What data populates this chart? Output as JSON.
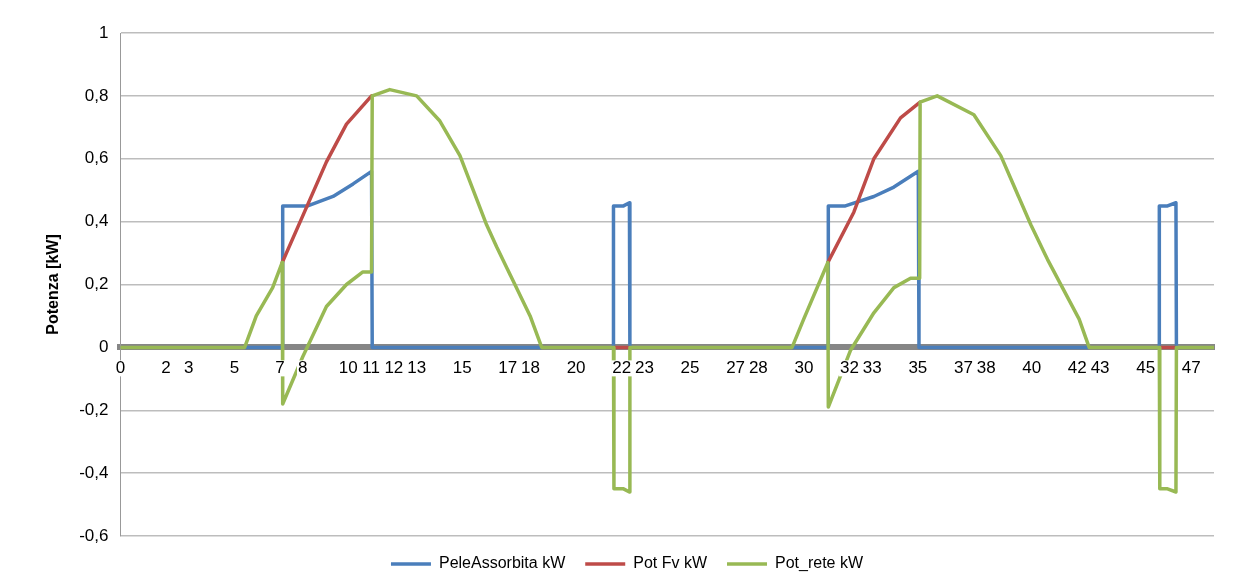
{
  "chart_data": {
    "type": "line",
    "ylabel": "Potenza [kW]",
    "xlim": [
      0,
      48
    ],
    "xticks": [
      0,
      2,
      3,
      5,
      7,
      8,
      10,
      11,
      12,
      13,
      15,
      17,
      18,
      20,
      22,
      23,
      25,
      27,
      28,
      30,
      32,
      33,
      35,
      37,
      38,
      40,
      42,
      43,
      45,
      47
    ],
    "ylim": [
      -0.6,
      1
    ],
    "yticks": [
      {
        "value": -0.6,
        "label": "-0,6"
      },
      {
        "value": -0.4,
        "label": "-0,4"
      },
      {
        "value": -0.2,
        "label": "-0,2"
      },
      {
        "value": 0,
        "label": "0"
      },
      {
        "value": 0.2,
        "label": "0,2"
      },
      {
        "value": 0.4,
        "label": "0,4"
      },
      {
        "value": 0.6,
        "label": "0,6"
      },
      {
        "value": 0.8,
        "label": "0,8"
      },
      {
        "value": 1,
        "label": "1"
      }
    ],
    "grid": "y",
    "legend": "bottom",
    "marker": "none",
    "line_style": "solid",
    "series": [
      {
        "name": "PeleAssorbita kW",
        "color": "#4a7ebb",
        "x": [
          5.45,
          7.12,
          7.12,
          7.9,
          8.22,
          9.33,
          10.21,
          11.02,
          11.05,
          18.49,
          20,
          21.64,
          21.64,
          22.08,
          22.34,
          22.36,
          25,
          29.48,
          31.07,
          31.07,
          31.82,
          33.07,
          33.95,
          35.02,
          35.05,
          42.52,
          44,
          45.6,
          45.6,
          45.96,
          46.33,
          46.35
        ],
        "values": [
          0,
          0,
          0.45,
          0.45,
          0.45,
          0.48,
          0.52,
          0.56,
          0,
          0,
          null,
          0,
          0.45,
          0.45,
          0.46,
          0,
          null,
          0,
          0,
          0.45,
          0.45,
          0.48,
          0.51,
          0.56,
          0,
          0,
          null,
          0,
          0.45,
          0.45,
          0.46,
          0
        ]
      },
      {
        "name": "Pot Fv kW",
        "color": "#be4b48",
        "x": [
          7.1,
          8.01,
          9.04,
          9.92,
          11.02,
          15,
          21.64,
          22.36,
          27,
          31.05,
          32.19,
          33.07,
          34.24,
          35.1,
          40,
          45.6,
          46.35
        ],
        "values": [
          0.27,
          0.42,
          0.59,
          0.71,
          0.8,
          null,
          0,
          0,
          null,
          0.27,
          0.43,
          0.6,
          0.73,
          0.78,
          null,
          0,
          0
        ]
      },
      {
        "name": "Pot_rete kW",
        "color": "#98b954",
        "x": [
          0,
          5.45,
          5.96,
          6.68,
          7.1,
          7.12,
          8.0,
          9.04,
          9.92,
          10.64,
          11.02,
          11.05,
          11.82,
          13.0,
          14.02,
          14.9,
          16.07,
          16.51,
          17.98,
          18.49,
          21.64,
          21.66,
          22.08,
          22.34,
          22.36,
          29.48,
          29.99,
          31.05,
          31.07,
          32.04,
          33.07,
          33.95,
          34.68,
          35.08,
          35.1,
          35.85,
          37.46,
          38.64,
          39.96,
          40.69,
          42.08,
          42.52,
          45.6,
          45.62,
          45.96,
          46.33,
          46.35,
          48
        ],
        "values": [
          0,
          0,
          0.1,
          0.19,
          0.27,
          -0.18,
          -0.03,
          0.13,
          0.2,
          0.24,
          0.24,
          0.8,
          0.82,
          0.8,
          0.72,
          0.61,
          0.39,
          0.32,
          0.1,
          0,
          0,
          -0.45,
          -0.45,
          -0.46,
          0,
          0,
          0.09,
          0.27,
          -0.19,
          -0.01,
          0.11,
          0.19,
          0.22,
          0.22,
          0.78,
          0.8,
          0.74,
          0.61,
          0.39,
          0.28,
          0.09,
          0,
          0,
          -0.45,
          -0.45,
          -0.46,
          0,
          0
        ]
      }
    ]
  }
}
